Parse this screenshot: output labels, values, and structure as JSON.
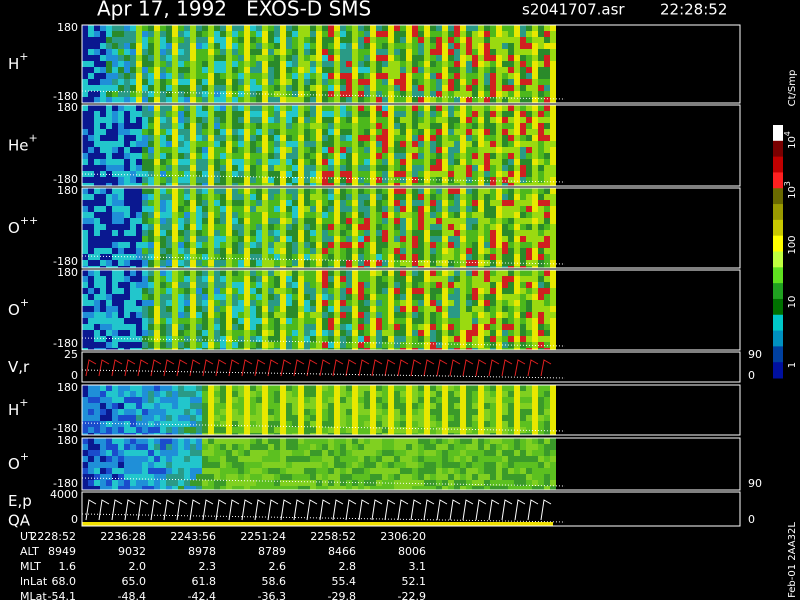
{
  "header": {
    "title": "Apr 17, 1992   EXOS-D SMS",
    "file": "s2041707.asr",
    "time": "22:28:52"
  },
  "panels": [
    {
      "ion": "H",
      "charge": "+",
      "top": "180",
      "bottom": "-180"
    },
    {
      "ion": "He",
      "charge": "+",
      "top": "180",
      "bottom": "-180"
    },
    {
      "ion": "O",
      "charge": "++",
      "top": "180",
      "bottom": "-180"
    },
    {
      "ion": "O",
      "charge": "+",
      "top": "180",
      "bottom": "-180"
    },
    {
      "ion": "V,r",
      "top": "25",
      "bottom": "0",
      "right_top": "90",
      "right_bottom": "0"
    },
    {
      "ion": "H",
      "charge": "+",
      "top": "180",
      "bottom": "-180"
    },
    {
      "ion": "O",
      "charge": "+",
      "top": "180",
      "bottom": "-180",
      "right_bottom": "90"
    },
    {
      "ion": "E,p",
      "ion2": "QA",
      "top": "4000",
      "bottom": "0",
      "right_bottom": "0"
    }
  ],
  "colorbar": {
    "unit": "Ct/Smp",
    "labels": [
      {
        "base": "10",
        "exp": "4"
      },
      {
        "base": "10",
        "exp": "3"
      },
      {
        "base": "100"
      },
      {
        "base": "10"
      },
      {
        "base": "1"
      }
    ]
  },
  "footer": {
    "rows": [
      {
        "name": "UT",
        "values": [
          "2228:52",
          "2236:28",
          "2243:56",
          "2251:24",
          "2258:52",
          "2306:20"
        ]
      },
      {
        "name": "ALT",
        "values": [
          "8949",
          "9032",
          "8978",
          "8789",
          "8466",
          "8006"
        ]
      },
      {
        "name": "MLT",
        "values": [
          "1.6",
          "2.0",
          "2.3",
          "2.6",
          "2.8",
          "3.1"
        ]
      },
      {
        "name": "lnLat",
        "values": [
          "68.0",
          "65.0",
          "61.8",
          "58.6",
          "55.4",
          "52.1"
        ]
      },
      {
        "name": "MLat",
        "values": [
          "-54.1",
          "-48.4",
          "-42.4",
          "-36.3",
          "-29.8",
          "-22.9"
        ]
      }
    ],
    "stamp": "Feb-01 2AA32L"
  }
}
